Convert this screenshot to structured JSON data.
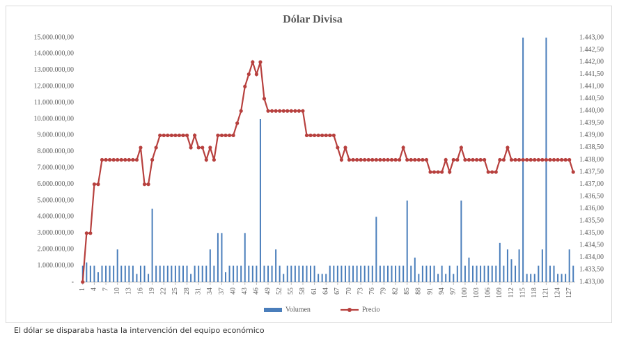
{
  "chart_data": {
    "type": "bar",
    "title": "Dólar Divisa",
    "legend": "bottom",
    "x": [
      1,
      2,
      3,
      4,
      5,
      6,
      7,
      8,
      9,
      10,
      11,
      12,
      13,
      14,
      15,
      16,
      17,
      18,
      19,
      20,
      21,
      22,
      23,
      24,
      25,
      26,
      27,
      28,
      29,
      30,
      31,
      32,
      33,
      34,
      35,
      36,
      37,
      38,
      39,
      40,
      41,
      42,
      43,
      44,
      45,
      46,
      47,
      48,
      49,
      50,
      51,
      52,
      53,
      54,
      55,
      56,
      57,
      58,
      59,
      60,
      61,
      62,
      63,
      64,
      65,
      66,
      67,
      68,
      69,
      70,
      71,
      72,
      73,
      74,
      75,
      76,
      77,
      78,
      79,
      80,
      81,
      82,
      83,
      84,
      85,
      86,
      87,
      88,
      89,
      90,
      91,
      92,
      93,
      94,
      95,
      96,
      97,
      98,
      99,
      100,
      101,
      102,
      103,
      104,
      105,
      106,
      107,
      108,
      109,
      110,
      111,
      112,
      113,
      114,
      115,
      116,
      117,
      118,
      119,
      120,
      121,
      122,
      123,
      124,
      125,
      126,
      127,
      128
    ],
    "xlim": [
      0.5,
      128.5
    ],
    "xticks": [
      1,
      4,
      7,
      10,
      13,
      16,
      19,
      22,
      25,
      28,
      31,
      34,
      37,
      40,
      43,
      46,
      49,
      52,
      55,
      58,
      61,
      64,
      67,
      70,
      73,
      76,
      79,
      82,
      85,
      88,
      91,
      94,
      97,
      100,
      103,
      106,
      109,
      112,
      115,
      118,
      121,
      124,
      127
    ],
    "ylim": [
      0,
      15000000
    ],
    "yticks": [
      {
        "value": 0,
        "label": "-"
      },
      {
        "value": 1000000,
        "label": "1.000.000,00"
      },
      {
        "value": 2000000,
        "label": "2.000.000,00"
      },
      {
        "value": 3000000,
        "label": "3.000.000,00"
      },
      {
        "value": 4000000,
        "label": "4.000.000,00"
      },
      {
        "value": 5000000,
        "label": "5.000.000,00"
      },
      {
        "value": 6000000,
        "label": "6.000.000,00"
      },
      {
        "value": 7000000,
        "label": "7.000.000,00"
      },
      {
        "value": 8000000,
        "label": "8.000.000,00"
      },
      {
        "value": 9000000,
        "label": "9.000.000,00"
      },
      {
        "value": 10000000,
        "label": "10.000.000,00"
      },
      {
        "value": 11000000,
        "label": "11.000.000,00"
      },
      {
        "value": 12000000,
        "label": "12.000.000,00"
      },
      {
        "value": 13000000,
        "label": "13.000.000,00"
      },
      {
        "value": 14000000,
        "label": "14.000.000,00"
      },
      {
        "value": 15000000,
        "label": "15.000.000,00"
      }
    ],
    "y2lim": [
      1433,
      1443
    ],
    "y2ticks": [
      {
        "value": 1433,
        "label": "1.433,00"
      },
      {
        "value": 1433.5,
        "label": "1.433,50"
      },
      {
        "value": 1434,
        "label": "1.434,00"
      },
      {
        "value": 1434.5,
        "label": "1.434,50"
      },
      {
        "value": 1435,
        "label": "1.435,00"
      },
      {
        "value": 1435.5,
        "label": "1.435,50"
      },
      {
        "value": 1436,
        "label": "1.436,00"
      },
      {
        "value": 1436.5,
        "label": "1.436,50"
      },
      {
        "value": 1437,
        "label": "1.437,00"
      },
      {
        "value": 1437.5,
        "label": "1.437,50"
      },
      {
        "value": 1438,
        "label": "1.438,00"
      },
      {
        "value": 1438.5,
        "label": "1.438,50"
      },
      {
        "value": 1439,
        "label": "1.439,00"
      },
      {
        "value": 1439.5,
        "label": "1.439,50"
      },
      {
        "value": 1440,
        "label": "1.440,00"
      },
      {
        "value": 1440.5,
        "label": "1.440,50"
      },
      {
        "value": 1441,
        "label": "1.441,00"
      },
      {
        "value": 1441.5,
        "label": "1.441,50"
      },
      {
        "value": 1442,
        "label": "1.442,00"
      },
      {
        "value": 1442.5,
        "label": "1.442,50"
      },
      {
        "value": 1443,
        "label": "1.443,00"
      }
    ],
    "series": [
      {
        "name": "Volumen",
        "type": "bar",
        "color": "#4a7ebb",
        "values": [
          1000000,
          1200000,
          1000000,
          1000000,
          600000,
          1000000,
          1000000,
          1000000,
          1000000,
          2000000,
          1000000,
          1000000,
          1000000,
          1000000,
          500000,
          1000000,
          1000000,
          500000,
          4500000,
          1000000,
          1000000,
          1000000,
          1000000,
          1000000,
          1000000,
          1000000,
          1000000,
          1000000,
          500000,
          1000000,
          1000000,
          1000000,
          1000000,
          2000000,
          1000000,
          3000000,
          3000000,
          600000,
          1000000,
          1000000,
          1000000,
          1000000,
          3000000,
          1000000,
          1000000,
          1000000,
          10000000,
          1000000,
          1000000,
          1000000,
          2000000,
          1000000,
          500000,
          1000000,
          1000000,
          1000000,
          1000000,
          1000000,
          1000000,
          1000000,
          1000000,
          500000,
          500000,
          500000,
          1000000,
          1000000,
          1000000,
          1000000,
          1000000,
          1000000,
          1000000,
          1000000,
          1000000,
          1000000,
          1000000,
          1000000,
          4000000,
          1000000,
          1000000,
          1000000,
          1000000,
          1000000,
          1000000,
          1000000,
          5000000,
          1000000,
          1500000,
          500000,
          1000000,
          1000000,
          1000000,
          1000000,
          500000,
          1000000,
          500000,
          1000000,
          500000,
          1000000,
          5000000,
          1000000,
          1500000,
          1000000,
          1000000,
          1000000,
          1000000,
          1000000,
          1000000,
          1000000,
          2400000,
          1000000,
          2000000,
          1400000,
          1000000,
          2000000,
          15000000,
          500000,
          500000,
          500000,
          1000000,
          2000000,
          15000000,
          1000000,
          1000000,
          500000,
          500000,
          500000,
          2000000,
          1000000
        ]
      },
      {
        "name": "Precio",
        "type": "line",
        "axis": "y2",
        "color": "#b7403e",
        "values": [
          1433,
          1435,
          1435,
          1437,
          1437,
          1438,
          1438,
          1438,
          1438,
          1438,
          1438,
          1438,
          1438,
          1438,
          1438,
          1438.5,
          1437,
          1437,
          1438,
          1438.5,
          1439,
          1439,
          1439,
          1439,
          1439,
          1439,
          1439,
          1439,
          1438.5,
          1439,
          1438.5,
          1438.5,
          1438,
          1438.5,
          1438,
          1439,
          1439,
          1439,
          1439,
          1439,
          1439.5,
          1440,
          1441,
          1441.5,
          1442,
          1441.5,
          1442,
          1440.5,
          1440,
          1440,
          1440,
          1440,
          1440,
          1440,
          1440,
          1440,
          1440,
          1440,
          1439,
          1439,
          1439,
          1439,
          1439,
          1439,
          1439,
          1439,
          1438.5,
          1438,
          1438.5,
          1438,
          1438,
          1438,
          1438,
          1438,
          1438,
          1438,
          1438,
          1438,
          1438,
          1438,
          1438,
          1438,
          1438,
          1438.5,
          1438,
          1438,
          1438,
          1438,
          1438,
          1438,
          1437.5,
          1437.5,
          1437.5,
          1437.5,
          1438,
          1437.5,
          1438,
          1438,
          1438.5,
          1438,
          1438,
          1438,
          1438,
          1438,
          1438,
          1437.5,
          1437.5,
          1437.5,
          1438,
          1438,
          1438.5,
          1438,
          1438,
          1438,
          1438,
          1438,
          1438,
          1438,
          1438,
          1438,
          1438,
          1438,
          1438,
          1438,
          1438,
          1438,
          1438,
          1437.5
        ]
      }
    ]
  },
  "caption": "El dólar se disparaba hasta la intervención del equipo económico"
}
